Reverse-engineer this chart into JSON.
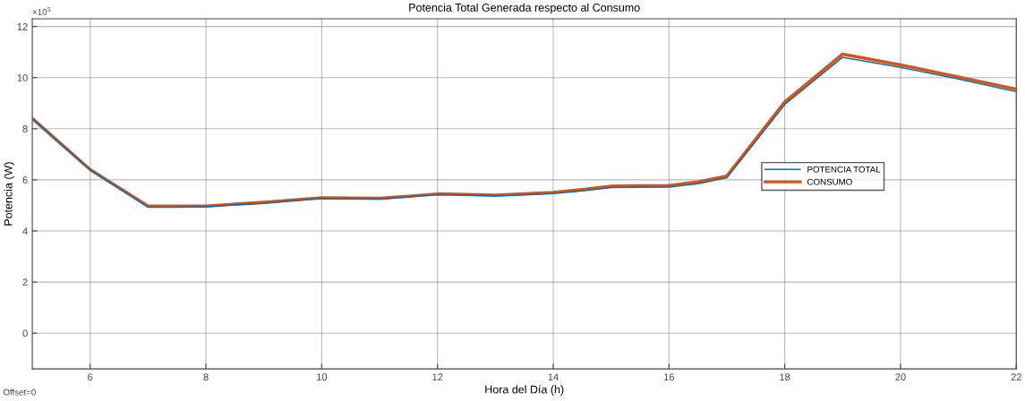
{
  "chart_data": {
    "type": "line",
    "title": "Potencia Total Generada respecto al Consumo",
    "xlabel": "Hora del Día (h)",
    "ylabel": "Potencia (W)",
    "x": [
      5,
      6,
      7,
      7.5,
      8,
      8.5,
      9,
      9.5,
      10,
      10.5,
      11,
      11.5,
      12,
      12.5,
      13,
      13.5,
      14,
      14.5,
      15,
      15.5,
      16,
      16.5,
      17,
      18,
      19,
      20,
      21,
      22
    ],
    "series": [
      {
        "name": "POTENCIA TOTAL",
        "color": "#0072bd",
        "values": [
          8.4,
          6.4,
          4.93,
          4.93,
          4.95,
          5.02,
          5.08,
          5.18,
          5.27,
          5.26,
          5.24,
          5.33,
          5.42,
          5.4,
          5.37,
          5.41,
          5.46,
          5.57,
          5.7,
          5.71,
          5.72,
          5.85,
          6.08,
          8.95,
          10.8,
          10.4,
          9.95,
          9.45
        ]
      },
      {
        "name": "CONSUMO",
        "color": "#d95319",
        "values": [
          8.4,
          6.4,
          4.97,
          4.97,
          4.97,
          5.05,
          5.12,
          5.21,
          5.3,
          5.29,
          5.28,
          5.36,
          5.45,
          5.43,
          5.4,
          5.45,
          5.51,
          5.62,
          5.75,
          5.77,
          5.78,
          5.92,
          6.15,
          9.05,
          10.92,
          10.5,
          10.03,
          9.55
        ]
      }
    ],
    "xlim": [
      5,
      22
    ],
    "xticks": [
      6,
      8,
      10,
      12,
      14,
      16,
      18,
      20,
      22
    ],
    "ylim": [
      -1.4,
      12.3
    ],
    "yticks": [
      0,
      2,
      4,
      6,
      8,
      10,
      12
    ],
    "annotations": [
      "×10$^{5}$",
      "Offset=0"
    ],
    "grid": true,
    "legend": "right",
    "marker": "none",
    "line_style": "solid"
  }
}
